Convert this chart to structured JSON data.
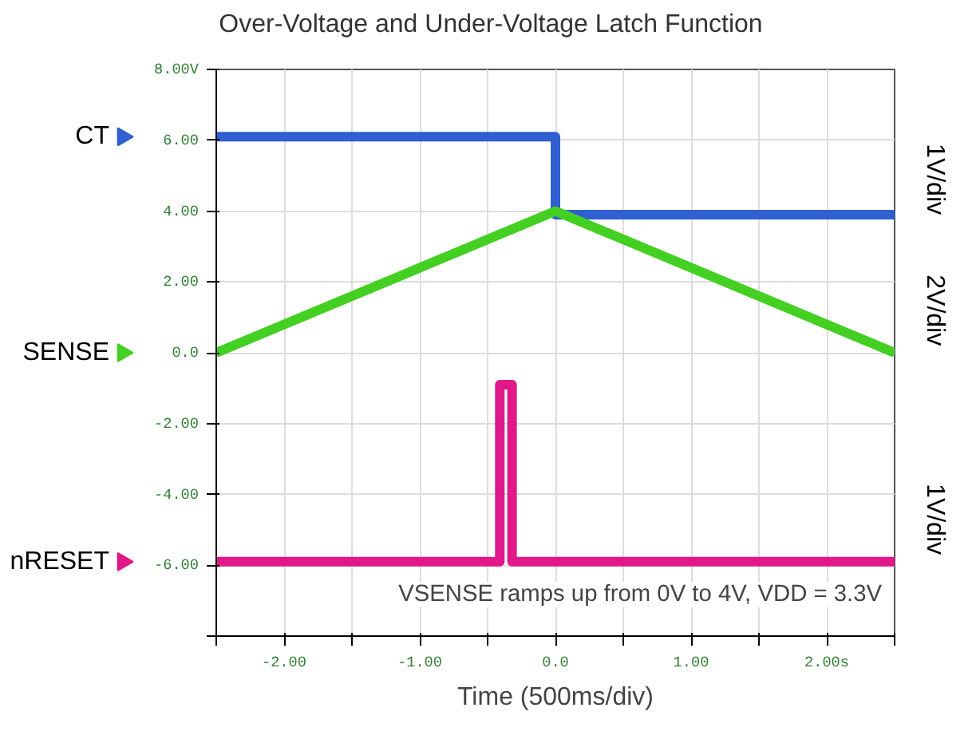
{
  "chart_data": {
    "type": "line",
    "title": "Over-Voltage and Under-Voltage Latch Function",
    "xlabel": "Time (500ms/div)",
    "xlim": [
      -2.5,
      2.5
    ],
    "ylim": [
      -8,
      8
    ],
    "xticks": [
      {
        "value": -2.5,
        "label": null
      },
      {
        "value": -2,
        "label": "-2.00"
      },
      {
        "value": -1.5,
        "label": null
      },
      {
        "value": -1,
        "label": "-1.00"
      },
      {
        "value": -0.5,
        "label": null
      },
      {
        "value": 0,
        "label": "0.0"
      },
      {
        "value": 0.5,
        "label": null
      },
      {
        "value": 1,
        "label": "1.00"
      },
      {
        "value": 1.5,
        "label": null
      },
      {
        "value": 2,
        "label": "2.00s"
      },
      {
        "value": 2.5,
        "label": null
      }
    ],
    "yticks": [
      {
        "value": -8,
        "label": null
      },
      {
        "value": -6,
        "label": "-6.00"
      },
      {
        "value": -4,
        "label": "-4.00"
      },
      {
        "value": -2,
        "label": "-2.00"
      },
      {
        "value": 0,
        "label": "0.0"
      },
      {
        "value": 2,
        "label": "2.00"
      },
      {
        "value": 4,
        "label": "4.00"
      },
      {
        "value": 6,
        "label": "6.00"
      },
      {
        "value": 8,
        "label": "8.00V"
      }
    ],
    "grid": true,
    "legend": "left",
    "marker": "none",
    "line_style": "solid",
    "series": [
      {
        "name": "CT",
        "color": "#2f5fd0",
        "x": [
          -2.5,
          0,
          0,
          2.5
        ],
        "values": [
          6.1,
          6.1,
          3.9,
          3.9
        ]
      },
      {
        "name": "SENSE",
        "color": "#44d022",
        "x": [
          -2.5,
          0,
          2.5
        ],
        "values": [
          0,
          4,
          0
        ]
      },
      {
        "name": "nRESET",
        "color": "#e0188a",
        "x": [
          -2.5,
          -0.41,
          -0.41,
          -0.32,
          -0.32,
          2.5
        ],
        "values": [
          -5.9,
          -5.9,
          -0.9,
          -0.9,
          -5.9,
          -5.9
        ]
      }
    ],
    "annotations": [
      "1V/div",
      "2V/div",
      "1V/div",
      "VSENSE ramps up from 0V to 4V, VDD = 3.3V"
    ]
  }
}
